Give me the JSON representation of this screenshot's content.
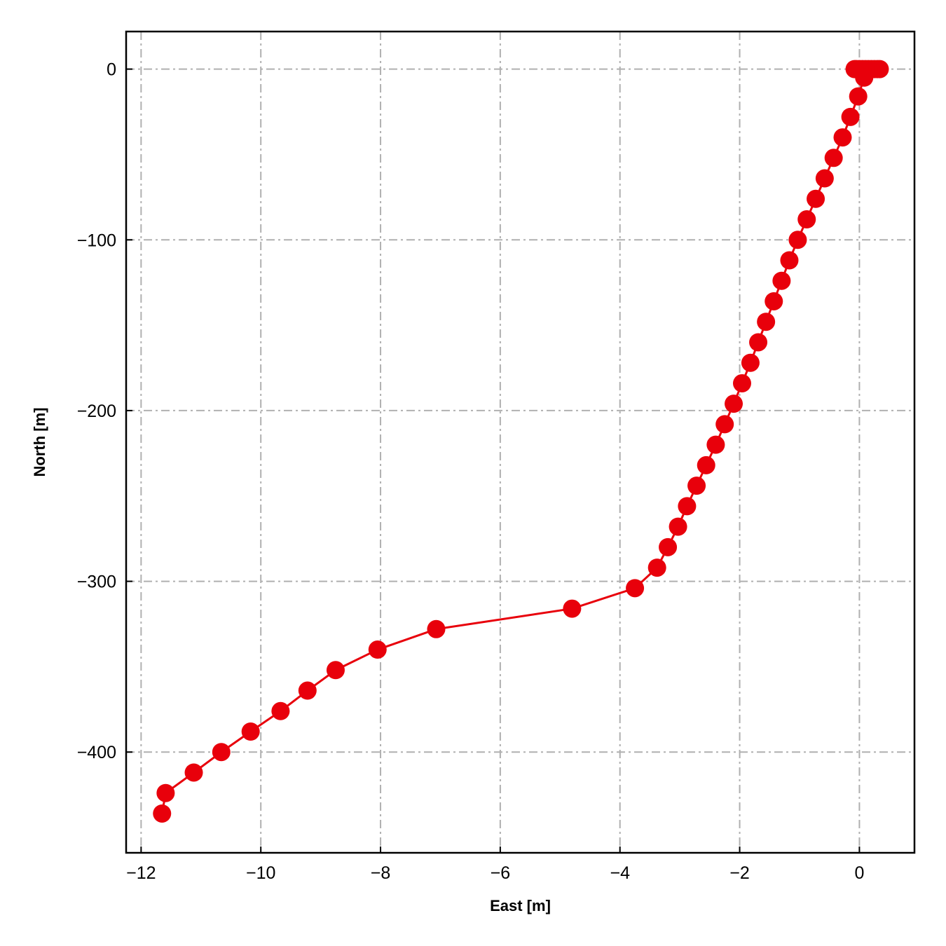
{
  "chart_data": {
    "type": "line",
    "title": "",
    "xlabel": "East [m]",
    "ylabel": "North [m]",
    "xlim": [
      -12.25,
      0.92
    ],
    "ylim": [
      -459,
      22
    ],
    "xticks": [
      -12,
      -10,
      -8,
      -6,
      -4,
      -2,
      0
    ],
    "yticks": [
      0,
      -100,
      -200,
      -300,
      -400
    ],
    "xtick_labels": [
      "−12",
      "−10",
      "−8",
      "−6",
      "−4",
      "−2",
      "0"
    ],
    "ytick_labels": [
      "0",
      "−100",
      "−200",
      "−300",
      "−400"
    ],
    "grid": true,
    "series": [
      {
        "color": "#e8000b",
        "marker": "circle",
        "x": [
          0.34,
          0.3,
          0.25,
          0.2,
          0.15,
          0.1,
          0.05,
          0.0,
          -0.05,
          -0.08,
          0.08,
          -0.02,
          -0.15,
          -0.28,
          -0.43,
          -0.58,
          -0.73,
          -0.88,
          -1.03,
          -1.17,
          -1.3,
          -1.43,
          -1.56,
          -1.69,
          -1.82,
          -1.96,
          -2.1,
          -2.25,
          -2.4,
          -2.56,
          -2.72,
          -2.88,
          -3.03,
          -3.2,
          -3.38,
          -3.75,
          -4.8,
          -7.07,
          -8.05,
          -8.75,
          -9.22,
          -9.67,
          -10.17,
          -10.66,
          -11.12,
          -11.59,
          -11.65
        ],
        "y": [
          0,
          0,
          0,
          0,
          0,
          0,
          0,
          0,
          0,
          0,
          -5,
          -16,
          -28,
          -40,
          -52,
          -64,
          -76,
          -88,
          -100,
          -112,
          -124,
          -136,
          -148,
          -160,
          -172,
          -184,
          -196,
          -208,
          -220,
          -232,
          -244,
          -256,
          -268,
          -280,
          -292,
          -304,
          -316,
          -328,
          -340,
          -352,
          -364,
          -376,
          -388,
          -400,
          -412,
          -424,
          -436
        ]
      }
    ]
  }
}
